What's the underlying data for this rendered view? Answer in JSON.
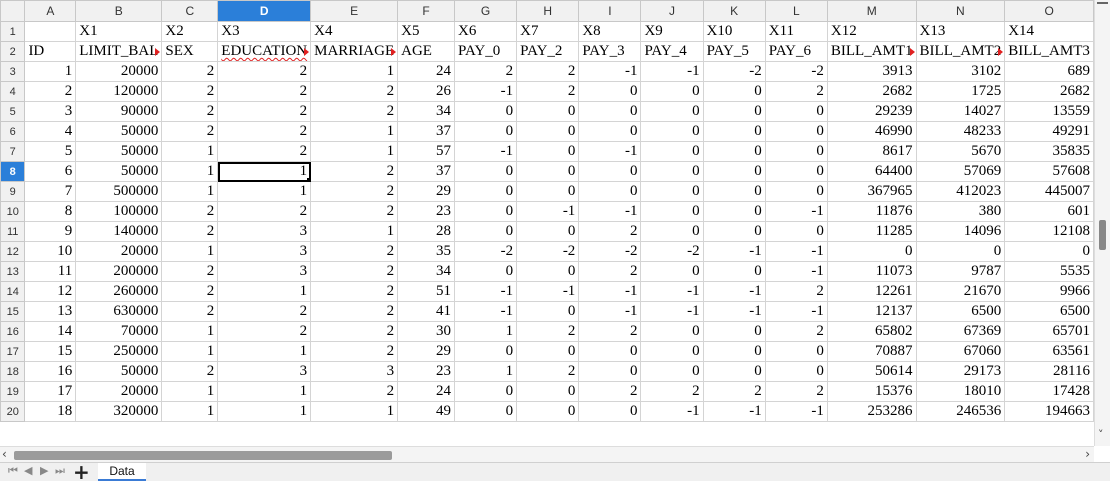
{
  "columns": [
    "A",
    "B",
    "C",
    "D",
    "E",
    "F",
    "G",
    "H",
    "I",
    "J",
    "K",
    "L",
    "M",
    "N",
    "O"
  ],
  "active_column": "D",
  "active_row": 8,
  "rows": [
    {
      "n": 1,
      "cells": [
        "",
        "X1",
        "X2",
        "X3",
        "X4",
        "X5",
        "X6",
        "X7",
        "X8",
        "X9",
        "X10",
        "X11",
        "X12",
        "X13",
        "X14"
      ]
    },
    {
      "n": 2,
      "cells": [
        "ID",
        "LIMIT_BAL",
        "SEX",
        "EDUCATION",
        "MARRIAGE",
        "AGE",
        "PAY_0",
        "PAY_2",
        "PAY_3",
        "PAY_4",
        "PAY_5",
        "PAY_6",
        "BILL_AMT1",
        "BILL_AMT2",
        "BILL_AMT3"
      ]
    },
    {
      "n": 3,
      "cells": [
        "1",
        "20000",
        "2",
        "2",
        "1",
        "24",
        "2",
        "2",
        "-1",
        "-1",
        "-2",
        "-2",
        "3913",
        "3102",
        "689"
      ]
    },
    {
      "n": 4,
      "cells": [
        "2",
        "120000",
        "2",
        "2",
        "2",
        "26",
        "-1",
        "2",
        "0",
        "0",
        "0",
        "2",
        "2682",
        "1725",
        "2682"
      ]
    },
    {
      "n": 5,
      "cells": [
        "3",
        "90000",
        "2",
        "2",
        "2",
        "34",
        "0",
        "0",
        "0",
        "0",
        "0",
        "0",
        "29239",
        "14027",
        "13559"
      ]
    },
    {
      "n": 6,
      "cells": [
        "4",
        "50000",
        "2",
        "2",
        "1",
        "37",
        "0",
        "0",
        "0",
        "0",
        "0",
        "0",
        "46990",
        "48233",
        "49291"
      ]
    },
    {
      "n": 7,
      "cells": [
        "5",
        "50000",
        "1",
        "2",
        "1",
        "57",
        "-1",
        "0",
        "-1",
        "0",
        "0",
        "0",
        "8617",
        "5670",
        "35835"
      ]
    },
    {
      "n": 8,
      "cells": [
        "6",
        "50000",
        "1",
        "1",
        "2",
        "37",
        "0",
        "0",
        "0",
        "0",
        "0",
        "0",
        "64400",
        "57069",
        "57608"
      ]
    },
    {
      "n": 9,
      "cells": [
        "7",
        "500000",
        "1",
        "1",
        "2",
        "29",
        "0",
        "0",
        "0",
        "0",
        "0",
        "0",
        "367965",
        "412023",
        "445007"
      ]
    },
    {
      "n": 10,
      "cells": [
        "8",
        "100000",
        "2",
        "2",
        "2",
        "23",
        "0",
        "-1",
        "-1",
        "0",
        "0",
        "-1",
        "11876",
        "380",
        "601"
      ]
    },
    {
      "n": 11,
      "cells": [
        "9",
        "140000",
        "2",
        "3",
        "1",
        "28",
        "0",
        "0",
        "2",
        "0",
        "0",
        "0",
        "11285",
        "14096",
        "12108"
      ]
    },
    {
      "n": 12,
      "cells": [
        "10",
        "20000",
        "1",
        "3",
        "2",
        "35",
        "-2",
        "-2",
        "-2",
        "-2",
        "-1",
        "-1",
        "0",
        "0",
        "0"
      ]
    },
    {
      "n": 13,
      "cells": [
        "11",
        "200000",
        "2",
        "3",
        "2",
        "34",
        "0",
        "0",
        "2",
        "0",
        "0",
        "-1",
        "11073",
        "9787",
        "5535"
      ]
    },
    {
      "n": 14,
      "cells": [
        "12",
        "260000",
        "2",
        "1",
        "2",
        "51",
        "-1",
        "-1",
        "-1",
        "-1",
        "-1",
        "2",
        "12261",
        "21670",
        "9966"
      ]
    },
    {
      "n": 15,
      "cells": [
        "13",
        "630000",
        "2",
        "2",
        "2",
        "41",
        "-1",
        "0",
        "-1",
        "-1",
        "-1",
        "-1",
        "12137",
        "6500",
        "6500"
      ]
    },
    {
      "n": 16,
      "cells": [
        "14",
        "70000",
        "1",
        "2",
        "2",
        "30",
        "1",
        "2",
        "2",
        "0",
        "0",
        "2",
        "65802",
        "67369",
        "65701"
      ]
    },
    {
      "n": 17,
      "cells": [
        "15",
        "250000",
        "1",
        "1",
        "2",
        "29",
        "0",
        "0",
        "0",
        "0",
        "0",
        "0",
        "70887",
        "67060",
        "63561"
      ]
    },
    {
      "n": 18,
      "cells": [
        "16",
        "50000",
        "2",
        "3",
        "3",
        "23",
        "1",
        "2",
        "0",
        "0",
        "0",
        "0",
        "50614",
        "29173",
        "28116"
      ]
    },
    {
      "n": 19,
      "cells": [
        "17",
        "20000",
        "1",
        "1",
        "2",
        "24",
        "0",
        "0",
        "2",
        "2",
        "2",
        "2",
        "15376",
        "18010",
        "17428"
      ]
    },
    {
      "n": 20,
      "cells": [
        "18",
        "320000",
        "1",
        "1",
        "1",
        "49",
        "0",
        "0",
        "0",
        "-1",
        "-1",
        "-1",
        "253286",
        "246536",
        "194663"
      ]
    }
  ],
  "sheet_tab": "Data",
  "icons": {
    "nav_first": "first-sheet-icon",
    "nav_prev": "prev-sheet-icon",
    "nav_next": "next-sheet-icon",
    "nav_last": "last-sheet-icon",
    "add_sheet": "plus-icon"
  },
  "colors": {
    "accent": "#2b7fd9",
    "overflow_marker": "#e02020"
  }
}
